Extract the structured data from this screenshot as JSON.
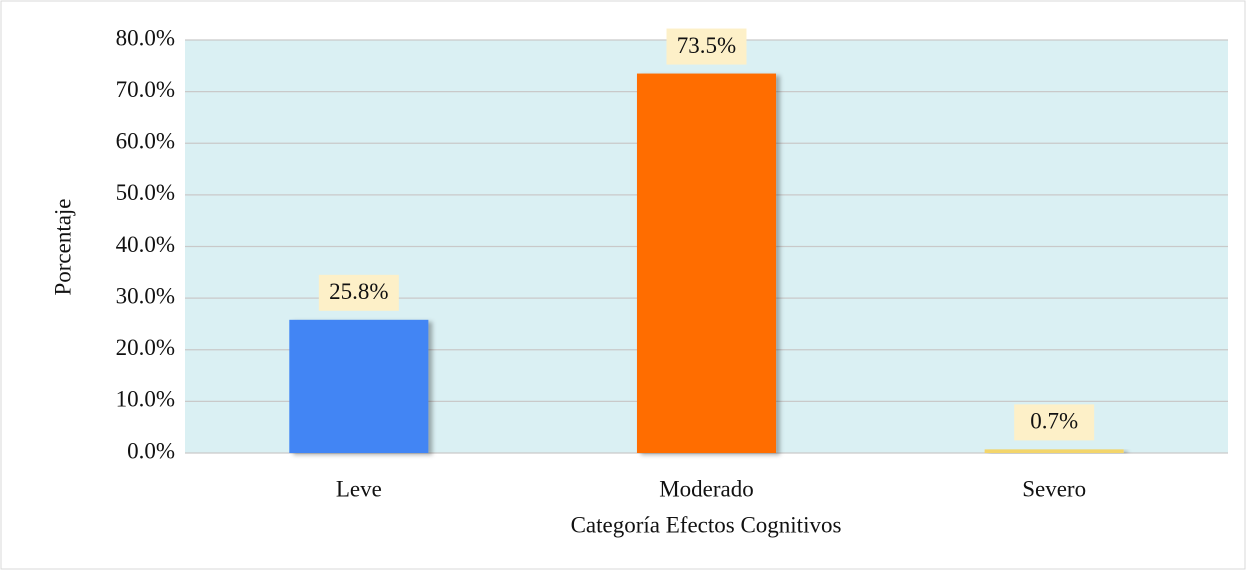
{
  "chart_data": {
    "type": "bar",
    "x_label": "Categoría Efectos Cognitivos",
    "y_label": "Porcentaje",
    "categories": [
      "Leve",
      "Moderado",
      "Severo"
    ],
    "values": [
      25.8,
      73.5,
      0.7
    ],
    "value_labels": [
      "25.8%",
      "73.5%",
      "0.7%"
    ],
    "colors": [
      "#4285f4",
      "#ff6d00",
      "#f3d56b"
    ],
    "ylim": [
      0,
      80
    ],
    "yticks": [
      {
        "value": 0,
        "label": "0.0%"
      },
      {
        "value": 10,
        "label": "10.0%"
      },
      {
        "value": 20,
        "label": "20.0%"
      },
      {
        "value": 30,
        "label": "30.0%"
      },
      {
        "value": 40,
        "label": "40.0%"
      },
      {
        "value": 50,
        "label": "50.0%"
      },
      {
        "value": 60,
        "label": "60.0%"
      },
      {
        "value": 70,
        "label": "70.0%"
      },
      {
        "value": 80,
        "label": "80.0%"
      }
    ],
    "grid": true
  }
}
